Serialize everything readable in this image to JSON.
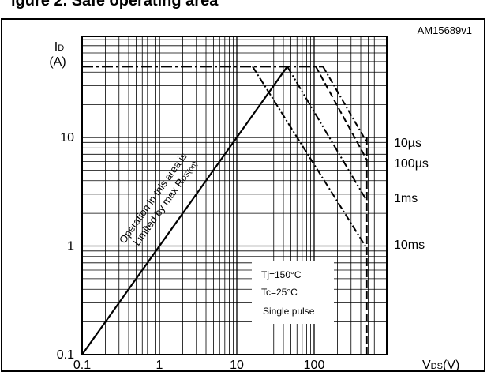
{
  "figure": {
    "title_fragment": "igure 2. Safe operating area",
    "code": "AM15689v1",
    "y_unit": "(A)"
  },
  "chart_data": {
    "type": "line",
    "title": "",
    "xlabel": "VDS(V)",
    "ylabel": "ID",
    "xscale": "log",
    "yscale": "log",
    "xlim": [
      0.1,
      600
    ],
    "ylim": [
      0.1,
      40
    ],
    "x_ticks": [
      "0.1",
      "1",
      "10",
      "100"
    ],
    "y_ticks": [
      "0.1",
      "1",
      "10"
    ],
    "grid": true,
    "boundaries": [
      {
        "kind": "rds_limit",
        "points": [
          [
            0.1,
            0.1
          ],
          [
            45,
            45
          ]
        ]
      },
      {
        "kind": "current_limit",
        "points": [
          [
            0.1,
            45
          ],
          [
            130,
            45
          ]
        ]
      },
      {
        "kind": "voltage_limit",
        "points": [
          [
            480,
            0.1
          ],
          [
            480,
            10
          ]
        ]
      }
    ],
    "series": [
      {
        "name": "10µs",
        "points": [
          [
            130,
            45
          ],
          [
            480,
            9
          ]
        ]
      },
      {
        "name": "100µs",
        "points": [
          [
            105,
            45
          ],
          [
            480,
            6.2
          ]
        ]
      },
      {
        "name": "1ms",
        "points": [
          [
            45,
            45
          ],
          [
            480,
            2.6
          ]
        ]
      },
      {
        "name": "10ms",
        "points": [
          [
            16,
            45
          ],
          [
            480,
            0.95
          ]
        ]
      }
    ],
    "annotations": {
      "rds_text_line1": "Operation in this area is",
      "rds_text_line2": "Limited by max R",
      "rds_text_sub": "DS(on)",
      "conditions": [
        "Tj=150°C",
        "Tc=25°C",
        "Single pulse"
      ]
    }
  }
}
